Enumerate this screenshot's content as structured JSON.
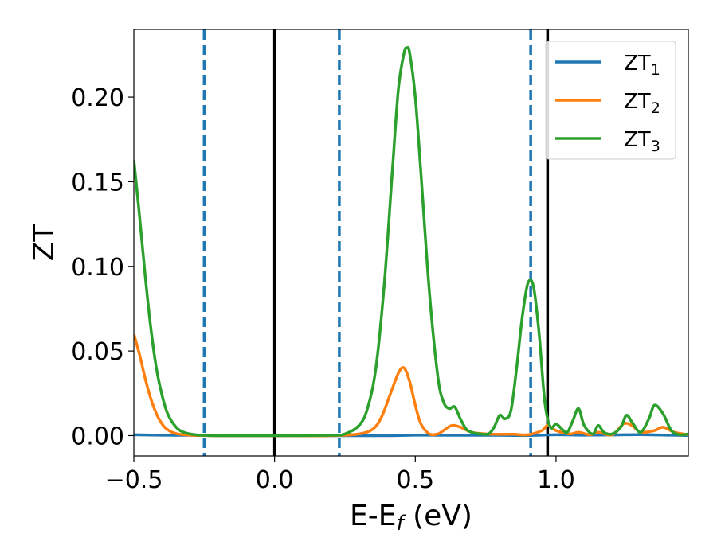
{
  "chart_data": {
    "type": "line",
    "xlabel": "E-E",
    "xlabel_sub": "f",
    "xlabel_unit": " (eV)",
    "ylabel": "ZT",
    "xlim": [
      -0.5,
      1.47
    ],
    "ylim": [
      -0.012,
      0.24
    ],
    "xticks": [
      -0.5,
      0.0,
      0.5,
      1.0
    ],
    "xtick_labels": [
      "−0.5",
      "0.0",
      "0.5",
      "1.0"
    ],
    "yticks": [
      0.0,
      0.05,
      0.1,
      0.15,
      0.2
    ],
    "ytick_labels": [
      "0.00",
      "0.05",
      "0.10",
      "0.15",
      "0.20"
    ],
    "grid": false,
    "legend_position": "top-right",
    "vlines": [
      {
        "x": -0.25,
        "style": "dashed",
        "color": "#1f77b4"
      },
      {
        "x": 0.0,
        "style": "solid",
        "color": "#000000"
      },
      {
        "x": 0.23,
        "style": "dashed",
        "color": "#1f77b4"
      },
      {
        "x": 0.91,
        "style": "dashed",
        "color": "#1f77b4"
      },
      {
        "x": 0.97,
        "style": "solid",
        "color": "#000000"
      }
    ],
    "series": [
      {
        "name": "ZT",
        "sub": "1",
        "color": "#1f77b4",
        "x": [
          -0.5,
          -0.4,
          -0.3,
          -0.2,
          0.0,
          0.2,
          0.4,
          0.5,
          0.6,
          0.8,
          0.9,
          1.0,
          1.1,
          1.2,
          1.3,
          1.4,
          1.47
        ],
        "y": [
          0.0005,
          0.0003,
          0.0002,
          0.0,
          0.0,
          0.0,
          0.0,
          0.0003,
          0.0002,
          0.0002,
          0.0001,
          0.0005,
          0.0003,
          0.0004,
          0.0006,
          0.0003,
          0.0001
        ]
      },
      {
        "name": "ZT",
        "sub": "2",
        "color": "#ff7f0e",
        "x": [
          -0.5,
          -0.48,
          -0.46,
          -0.44,
          -0.42,
          -0.4,
          -0.38,
          -0.35,
          -0.3,
          -0.25,
          -0.2,
          0.0,
          0.2,
          0.3,
          0.35,
          0.38,
          0.41,
          0.44,
          0.46,
          0.48,
          0.5,
          0.52,
          0.55,
          0.58,
          0.6,
          0.63,
          0.66,
          0.7,
          0.75,
          0.8,
          0.85,
          0.9,
          0.95,
          0.97,
          1.0,
          1.05,
          1.08,
          1.12,
          1.15,
          1.2,
          1.24,
          1.27,
          1.3,
          1.35,
          1.38,
          1.42,
          1.47
        ],
        "y": [
          0.06,
          0.048,
          0.034,
          0.022,
          0.013,
          0.007,
          0.0035,
          0.0012,
          0.0003,
          0.0001,
          0.0,
          0.0,
          0.0,
          0.001,
          0.004,
          0.011,
          0.024,
          0.037,
          0.04,
          0.032,
          0.018,
          0.007,
          0.001,
          0.001,
          0.003,
          0.006,
          0.005,
          0.002,
          0.001,
          0.0008,
          0.0008,
          0.0005,
          0.003,
          0.006,
          0.003,
          0.001,
          0.002,
          0.0005,
          0.002,
          0.0005,
          0.007,
          0.006,
          0.002,
          0.003,
          0.005,
          0.002,
          0.0005
        ]
      },
      {
        "name": "ZT",
        "sub": "3",
        "color": "#2ca02c",
        "x": [
          -0.5,
          -0.48,
          -0.46,
          -0.44,
          -0.42,
          -0.4,
          -0.38,
          -0.35,
          -0.32,
          -0.28,
          -0.25,
          -0.2,
          0.0,
          0.2,
          0.25,
          0.3,
          0.33,
          0.36,
          0.39,
          0.42,
          0.44,
          0.46,
          0.47,
          0.48,
          0.5,
          0.52,
          0.55,
          0.58,
          0.6,
          0.62,
          0.64,
          0.66,
          0.68,
          0.7,
          0.73,
          0.76,
          0.78,
          0.8,
          0.82,
          0.84,
          0.86,
          0.88,
          0.9,
          0.92,
          0.94,
          0.96,
          0.98,
          1.0,
          1.02,
          1.04,
          1.06,
          1.08,
          1.1,
          1.13,
          1.15,
          1.17,
          1.2,
          1.23,
          1.25,
          1.27,
          1.3,
          1.33,
          1.35,
          1.38,
          1.41,
          1.44,
          1.47
        ],
        "y": [
          0.163,
          0.13,
          0.095,
          0.064,
          0.04,
          0.024,
          0.013,
          0.005,
          0.0018,
          0.0005,
          0.0002,
          0.0,
          0.0,
          0.0002,
          0.001,
          0.006,
          0.016,
          0.04,
          0.09,
          0.16,
          0.205,
          0.226,
          0.229,
          0.226,
          0.2,
          0.155,
          0.085,
          0.035,
          0.02,
          0.016,
          0.017,
          0.01,
          0.004,
          0.002,
          0.001,
          0.001,
          0.005,
          0.012,
          0.01,
          0.015,
          0.04,
          0.07,
          0.09,
          0.088,
          0.06,
          0.02,
          0.005,
          0.007,
          0.004,
          0.002,
          0.009,
          0.016,
          0.006,
          0.001,
          0.006,
          0.002,
          0.001,
          0.005,
          0.012,
          0.008,
          0.002,
          0.01,
          0.018,
          0.013,
          0.003,
          0.0005,
          0.001
        ]
      }
    ]
  }
}
